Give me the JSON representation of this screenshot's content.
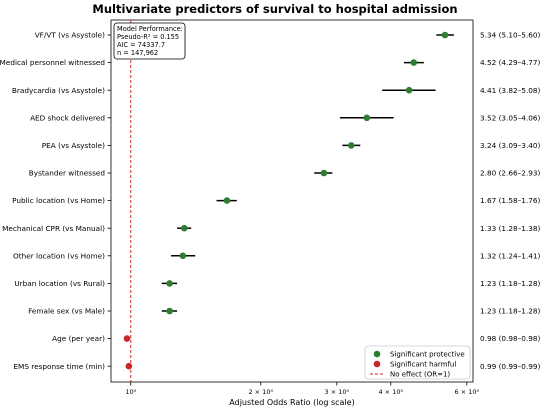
{
  "chart_data": {
    "type": "scatter",
    "title": "Multivariate predictors of survival to hospital admission",
    "xlabel": "Adjusted Odds Ratio (log scale)",
    "x_scale": "log",
    "xlim": [
      0.9,
      6.2
    ],
    "xticks": [
      {
        "value": 1,
        "label": "10⁰"
      },
      {
        "value": 2,
        "label": "2 × 10⁰"
      },
      {
        "value": 3,
        "label": "3 × 10⁰"
      },
      {
        "value": 4,
        "label": "4 × 10⁰"
      },
      {
        "value": 6,
        "label": "6 × 10⁰"
      }
    ],
    "reference_line": {
      "value": 1
    },
    "annotation": [
      "Model Performance:",
      "Pseudo-R² = 0.155",
      "AIC = 74337.7",
      "n = 147,962"
    ],
    "legend_position": "bottom-right",
    "legend": [
      {
        "label": "Significant protective",
        "color": "#2e7d32",
        "kind": "point"
      },
      {
        "label": "Significant harmful",
        "color": "#c62828",
        "kind": "point"
      },
      {
        "label": "No effect (OR=1)",
        "color": "#d62728",
        "kind": "dashed"
      }
    ],
    "colors": {
      "protective": "#2e7d32",
      "harmful": "#c62828",
      "reference": "#d62728",
      "ci": "#000000"
    },
    "rows": [
      {
        "label": "VF/VT (vs Asystole)",
        "or": 5.34,
        "lo": 5.1,
        "hi": 5.6,
        "text": "5.34 (5.10–5.60)",
        "group": "protective"
      },
      {
        "label": "Medical personnel witnessed",
        "or": 4.52,
        "lo": 4.29,
        "hi": 4.77,
        "text": "4.52 (4.29–4.77)",
        "group": "protective"
      },
      {
        "label": "Bradycardia (vs Asystole)",
        "or": 4.41,
        "lo": 3.82,
        "hi": 5.08,
        "text": "4.41 (3.82–5.08)",
        "group": "protective"
      },
      {
        "label": "AED shock delivered",
        "or": 3.52,
        "lo": 3.05,
        "hi": 4.06,
        "text": "3.52 (3.05–4.06)",
        "group": "protective"
      },
      {
        "label": "PEA (vs Asystole)",
        "or": 3.24,
        "lo": 3.09,
        "hi": 3.4,
        "text": "3.24 (3.09–3.40)",
        "group": "protective"
      },
      {
        "label": "Bystander witnessed",
        "or": 2.8,
        "lo": 2.66,
        "hi": 2.93,
        "text": "2.80 (2.66–2.93)",
        "group": "protective"
      },
      {
        "label": "Public location (vs Home)",
        "or": 1.67,
        "lo": 1.58,
        "hi": 1.76,
        "text": "1.67 (1.58–1.76)",
        "group": "protective"
      },
      {
        "label": "Mechanical CPR (vs Manual)",
        "or": 1.33,
        "lo": 1.28,
        "hi": 1.38,
        "text": "1.33 (1.28–1.38)",
        "group": "protective"
      },
      {
        "label": "Other location (vs Home)",
        "or": 1.32,
        "lo": 1.24,
        "hi": 1.41,
        "text": "1.32 (1.24–1.41)",
        "group": "protective"
      },
      {
        "label": "Urban location (vs Rural)",
        "or": 1.23,
        "lo": 1.18,
        "hi": 1.28,
        "text": "1.23 (1.18–1.28)",
        "group": "protective"
      },
      {
        "label": "Female sex (vs Male)",
        "or": 1.23,
        "lo": 1.18,
        "hi": 1.28,
        "text": "1.23 (1.18–1.28)",
        "group": "protective"
      },
      {
        "label": "Age (per year)",
        "or": 0.98,
        "lo": 0.98,
        "hi": 0.98,
        "text": "0.98 (0.98–0.98)",
        "group": "harmful"
      },
      {
        "label": "EMS response time (min)",
        "or": 0.99,
        "lo": 0.99,
        "hi": 0.99,
        "text": "0.99 (0.99–0.99)",
        "group": "harmful"
      }
    ]
  }
}
